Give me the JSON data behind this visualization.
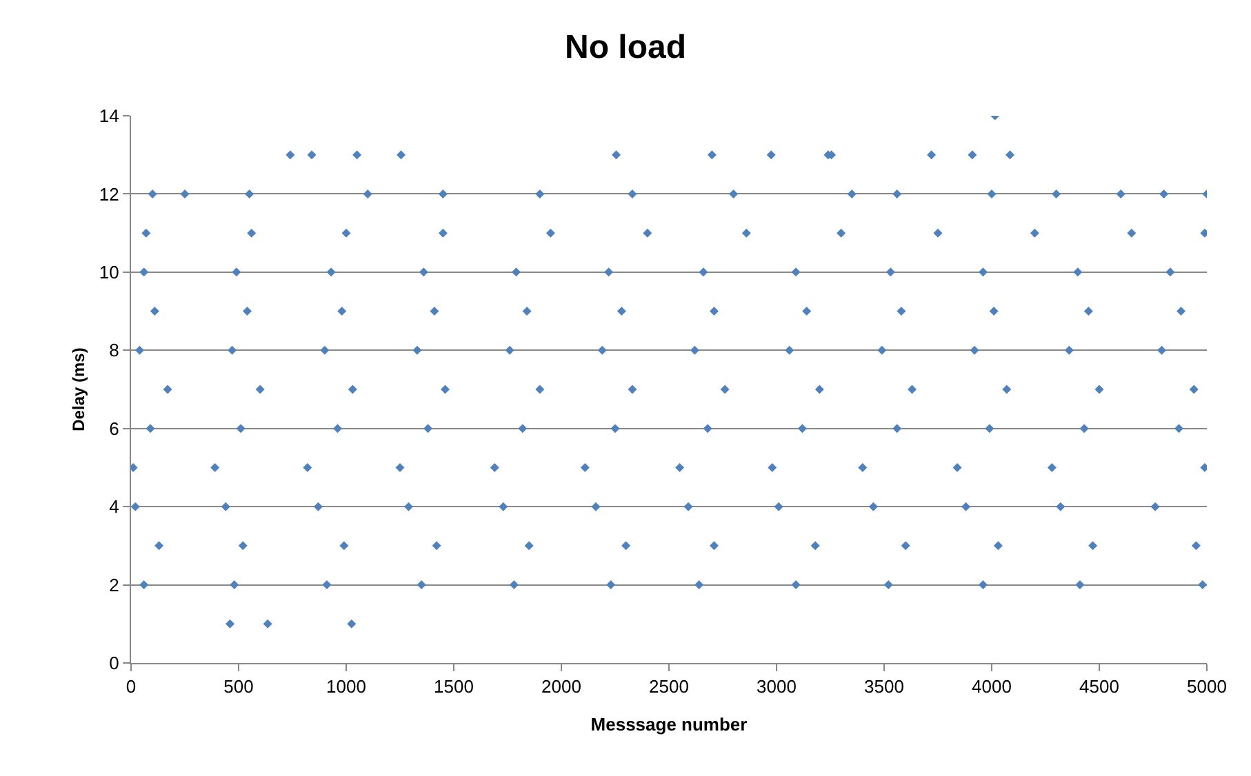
{
  "chart_data": {
    "type": "scatter",
    "title": "No load",
    "xlabel": "Messsage number",
    "ylabel": "Delay (ms)",
    "x": [
      60,
      480,
      910,
      1350,
      1780,
      2230,
      2640,
      3090,
      3520,
      3960,
      4410,
      4980,
      130,
      520,
      990,
      1420,
      1850,
      2300,
      2710,
      3180,
      3600,
      4030,
      4470,
      4950,
      20,
      440,
      870,
      1290,
      1730,
      2160,
      2590,
      3010,
      3450,
      3880,
      4320,
      4760,
      10,
      390,
      820,
      1250,
      1690,
      2110,
      2550,
      2980,
      3400,
      3840,
      4280,
      4990,
      90,
      510,
      960,
      1380,
      1820,
      2250,
      2680,
      3120,
      3560,
      3990,
      4430,
      4870,
      170,
      600,
      1030,
      1460,
      1900,
      2330,
      2760,
      3200,
      3630,
      4070,
      4500,
      4940,
      40,
      470,
      900,
      1330,
      1760,
      2190,
      2620,
      3060,
      3490,
      3920,
      4360,
      4790,
      110,
      540,
      980,
      1410,
      1840,
      2280,
      2710,
      3140,
      3580,
      4010,
      4450,
      4880,
      60,
      490,
      930,
      1360,
      1790,
      2220,
      2660,
      3090,
      3530,
      3960,
      4400,
      4830,
      70,
      560,
      1000,
      1450,
      1950,
      2400,
      2860,
      3300,
      3750,
      4200,
      4650,
      4990,
      100,
      250,
      550,
      1100,
      1450,
      1900,
      2330,
      2800,
      3350,
      3560,
      4000,
      4300,
      4600,
      4800,
      5000,
      740,
      840,
      1050,
      1255,
      2255,
      2700,
      2975,
      3240,
      3255,
      3720,
      3910,
      4085,
      4015,
      460,
      635,
      1025
    ],
    "values": [
      2,
      2,
      2,
      2,
      2,
      2,
      2,
      2,
      2,
      2,
      2,
      2,
      3,
      3,
      3,
      3,
      3,
      3,
      3,
      3,
      3,
      3,
      3,
      3,
      4,
      4,
      4,
      4,
      4,
      4,
      4,
      4,
      4,
      4,
      4,
      4,
      5,
      5,
      5,
      5,
      5,
      5,
      5,
      5,
      5,
      5,
      5,
      5,
      6,
      6,
      6,
      6,
      6,
      6,
      6,
      6,
      6,
      6,
      6,
      6,
      7,
      7,
      7,
      7,
      7,
      7,
      7,
      7,
      7,
      7,
      7,
      7,
      8,
      8,
      8,
      8,
      8,
      8,
      8,
      8,
      8,
      8,
      8,
      8,
      9,
      9,
      9,
      9,
      9,
      9,
      9,
      9,
      9,
      9,
      9,
      9,
      10,
      10,
      10,
      10,
      10,
      10,
      10,
      10,
      10,
      10,
      10,
      10,
      11,
      11,
      11,
      11,
      11,
      11,
      11,
      11,
      11,
      11,
      11,
      11,
      12,
      12,
      12,
      12,
      12,
      12,
      12,
      12,
      12,
      12,
      12,
      12,
      12,
      12,
      12,
      13,
      13,
      13,
      13,
      13,
      13,
      13,
      13,
      13,
      13,
      13,
      13,
      14,
      1,
      1,
      1
    ],
    "color": "#4f81bd",
    "marker": "diamond",
    "grid": "y",
    "legend": false,
    "xlim": [
      0,
      5000
    ],
    "xticks": [
      0,
      500,
      1000,
      1500,
      2000,
      2500,
      3000,
      3500,
      4000,
      4500,
      5000
    ],
    "ylim": [
      0,
      14
    ],
    "yticks": [
      0,
      2,
      4,
      6,
      8,
      10,
      12,
      14
    ]
  }
}
